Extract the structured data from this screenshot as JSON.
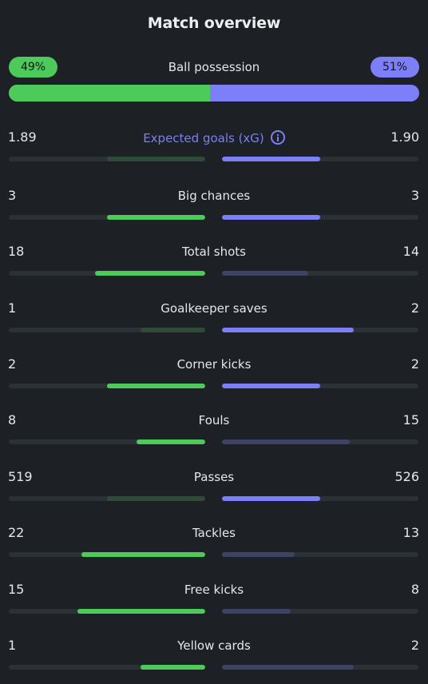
{
  "title": "Match overview",
  "possession": {
    "label": "Ball possession",
    "home_text": "49%",
    "away_text": "51%",
    "home_pct": 49,
    "away_pct": 51
  },
  "colors": {
    "home_strong": "#4ccb5a",
    "home_weak": "#2f4a37",
    "away_strong": "#7c7ff7",
    "away_weak": "#3e4366",
    "track": "#2c3135",
    "background": "#1d2024"
  },
  "stats": [
    {
      "name": "Expected goals (xG)",
      "home": "1.89",
      "away": "1.90",
      "home_fill": 0.5,
      "away_fill": 0.5,
      "home_lead": false,
      "away_lead": true,
      "info_icon": "info-icon"
    },
    {
      "name": "Big chances",
      "home": "3",
      "away": "3",
      "home_fill": 0.5,
      "away_fill": 0.5,
      "home_lead": true,
      "away_lead": true
    },
    {
      "name": "Total shots",
      "home": "18",
      "away": "14",
      "home_fill": 0.56,
      "away_fill": 0.44,
      "home_lead": true,
      "away_lead": false
    },
    {
      "name": "Goalkeeper saves",
      "home": "1",
      "away": "2",
      "home_fill": 0.33,
      "away_fill": 0.67,
      "home_lead": false,
      "away_lead": true
    },
    {
      "name": "Corner kicks",
      "home": "2",
      "away": "2",
      "home_fill": 0.5,
      "away_fill": 0.5,
      "home_lead": true,
      "away_lead": true
    },
    {
      "name": "Fouls",
      "home": "8",
      "away": "15",
      "home_fill": 0.35,
      "away_fill": 0.65,
      "home_lead": true,
      "away_lead": false
    },
    {
      "name": "Passes",
      "home": "519",
      "away": "526",
      "home_fill": 0.5,
      "away_fill": 0.5,
      "home_lead": false,
      "away_lead": true
    },
    {
      "name": "Tackles",
      "home": "22",
      "away": "13",
      "home_fill": 0.63,
      "away_fill": 0.37,
      "home_lead": true,
      "away_lead": false
    },
    {
      "name": "Free kicks",
      "home": "15",
      "away": "8",
      "home_fill": 0.65,
      "away_fill": 0.35,
      "home_lead": true,
      "away_lead": false
    },
    {
      "name": "Yellow cards",
      "home": "1",
      "away": "2",
      "home_fill": 0.33,
      "away_fill": 0.67,
      "home_lead": true,
      "away_lead": false
    }
  ]
}
